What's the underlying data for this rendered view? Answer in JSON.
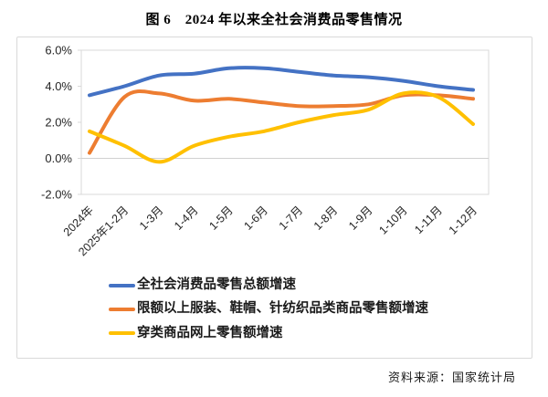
{
  "title": "图 6　2024 年以来全社会消费品零售情况",
  "source": "资料来源：国家统计局",
  "colors": {
    "series_blue": "#4472C4",
    "series_orange": "#ED7D31",
    "series_yellow": "#FFC000",
    "grid": "#D9D9D9",
    "frame_border": "#D9D9D9",
    "text": "#262626"
  },
  "chart_data": {
    "type": "line",
    "title": "图 6　2024 年以来全社会消费品零售情况",
    "categories": [
      "2024年",
      "2025年1-2月",
      "1-3月",
      "1-4月",
      "1-5月",
      "1-6月",
      "1-7月",
      "1-8月",
      "1-9月",
      "1-10月",
      "1-11月",
      "1-12月"
    ],
    "series": [
      {
        "name": "全社会消费品零售总额增速",
        "color": "#4472C4",
        "values": [
          3.5,
          4.0,
          4.6,
          4.7,
          5.0,
          5.0,
          4.8,
          4.6,
          4.5,
          4.3,
          4.0,
          3.8
        ]
      },
      {
        "name": "限额以上服装、鞋帽、针纺织品类商品零售额增速",
        "color": "#ED7D31",
        "values": [
          0.3,
          3.4,
          3.6,
          3.2,
          3.3,
          3.1,
          2.9,
          2.9,
          3.0,
          3.5,
          3.5,
          3.3
        ]
      },
      {
        "name": "穿类商品网上零售额增速",
        "color": "#FFC000",
        "values": [
          1.5,
          0.7,
          -0.2,
          0.7,
          1.2,
          1.5,
          2.0,
          2.4,
          2.7,
          3.6,
          3.4,
          1.9
        ]
      }
    ],
    "ylim": [
      -2.0,
      6.0
    ],
    "y_tick_labels": [
      "6.0%",
      "4.0%",
      "2.0%",
      "0.0%",
      "-2.0%"
    ],
    "y_tick_values": [
      6.0,
      4.0,
      2.0,
      0.0,
      -2.0
    ],
    "unit": "%",
    "grid": "zero-line-only",
    "legend_position": "bottom-left"
  }
}
